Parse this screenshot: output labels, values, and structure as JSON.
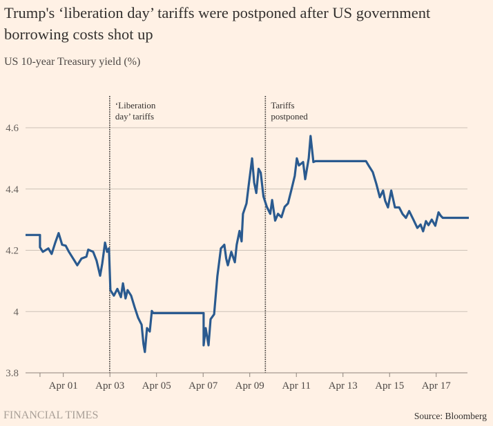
{
  "header": {
    "title": "Trump's ‘liberation day’ tariffs were postponed after US government borrowing costs shot up",
    "subtitle": "US 10-year Treasury yield (%)"
  },
  "footer": {
    "brand": "FINANCIAL TIMES",
    "source": "Source: Bloomberg"
  },
  "colors": {
    "background": "#fff1e5",
    "series": "#2a5a8f",
    "gridline": "#ccc1b7",
    "axis": "#8c827b",
    "annotation_line": "#33302e"
  },
  "chart_data": {
    "type": "line",
    "title": "Trump's ‘liberation day’ tariffs were postponed after US government borrowing costs shot up",
    "ylabel": "US 10-year Treasury yield (%)",
    "xlabel": "",
    "x_unit": "days since Mar 31",
    "xlim": [
      -0.62,
      18.4
    ],
    "ylim": [
      3.8,
      4.6
    ],
    "yticks": [
      3.8,
      4.0,
      4.2,
      4.4,
      4.6
    ],
    "ytick_labels": [
      "3.8",
      "4",
      "4.2",
      "4.4",
      "4.6"
    ],
    "xticks": [
      0,
      1,
      3,
      5,
      7,
      9,
      11,
      13,
      15,
      17
    ],
    "xtick_labels": [
      "",
      "Apr 01",
      "Apr 03",
      "Apr 05",
      "Apr 07",
      "Apr 09",
      "Apr 11",
      "Apr 13",
      "Apr 15",
      "Apr 17"
    ],
    "grid": true,
    "legend": "none",
    "annotations": [
      {
        "x": 2.99,
        "label_lines": [
          "‘Liberation",
          "day’ tariffs"
        ]
      },
      {
        "x": 9.67,
        "label_lines": [
          "Tariffs",
          "postponed"
        ]
      }
    ],
    "series": [
      {
        "name": "US 10-year Treasury yield",
        "x": [
          -0.62,
          0.0,
          0.0,
          0.12,
          0.36,
          0.5,
          0.65,
          0.8,
          0.95,
          1.1,
          1.24,
          1.48,
          1.6,
          1.78,
          1.99,
          2.07,
          2.28,
          2.43,
          2.58,
          2.67,
          2.79,
          2.88,
          2.96,
          3.02,
          3.17,
          3.32,
          3.47,
          3.56,
          3.67,
          3.76,
          3.91,
          4.06,
          4.21,
          4.36,
          4.44,
          4.5,
          4.59,
          4.71,
          4.8,
          4.8,
          4.86,
          7.02,
          7.02,
          7.11,
          7.23,
          7.32,
          7.47,
          7.61,
          7.76,
          7.91,
          7.99,
          8.06,
          8.21,
          8.36,
          8.44,
          8.56,
          8.65,
          8.71,
          8.86,
          8.95,
          9.1,
          9.19,
          9.28,
          9.38,
          9.47,
          9.59,
          9.73,
          9.88,
          9.96,
          10.09,
          10.21,
          10.36,
          10.5,
          10.64,
          10.79,
          10.93,
          11.02,
          11.11,
          11.29,
          11.38,
          11.53,
          11.61,
          11.73,
          11.82,
          13.99,
          14.13,
          14.28,
          14.43,
          14.58,
          14.72,
          14.81,
          14.93,
          15.07,
          15.23,
          15.41,
          15.56,
          15.7,
          15.84,
          16.02,
          16.19,
          16.33,
          16.44,
          16.56,
          16.67,
          16.81,
          16.96,
          17.1,
          17.19,
          17.28,
          18.4
        ],
        "values": [
          4.25,
          4.25,
          4.21,
          4.195,
          4.206,
          4.188,
          4.224,
          4.256,
          4.218,
          4.215,
          4.195,
          4.166,
          4.151,
          4.173,
          4.179,
          4.202,
          4.195,
          4.166,
          4.117,
          4.157,
          4.225,
          4.195,
          4.206,
          4.07,
          4.052,
          4.074,
          4.047,
          4.092,
          4.043,
          4.07,
          4.052,
          4.014,
          3.98,
          3.957,
          3.894,
          3.868,
          3.946,
          3.935,
          4.002,
          4.002,
          3.995,
          3.995,
          3.89,
          3.946,
          3.89,
          3.975,
          3.991,
          4.115,
          4.206,
          4.218,
          4.173,
          4.151,
          4.195,
          4.161,
          4.218,
          4.263,
          4.229,
          4.319,
          4.353,
          4.409,
          4.5,
          4.421,
          4.387,
          4.466,
          4.453,
          4.375,
          4.342,
          4.319,
          4.364,
          4.297,
          4.319,
          4.308,
          4.342,
          4.353,
          4.398,
          4.443,
          4.5,
          4.477,
          4.488,
          4.432,
          4.5,
          4.573,
          4.488,
          4.491,
          4.491,
          4.473,
          4.455,
          4.417,
          4.373,
          4.395,
          4.362,
          4.34,
          4.395,
          4.34,
          4.34,
          4.318,
          4.306,
          4.328,
          4.3,
          4.273,
          4.284,
          4.262,
          4.295,
          4.282,
          4.3,
          4.28,
          4.324,
          4.313,
          4.306,
          4.306
        ]
      }
    ]
  }
}
